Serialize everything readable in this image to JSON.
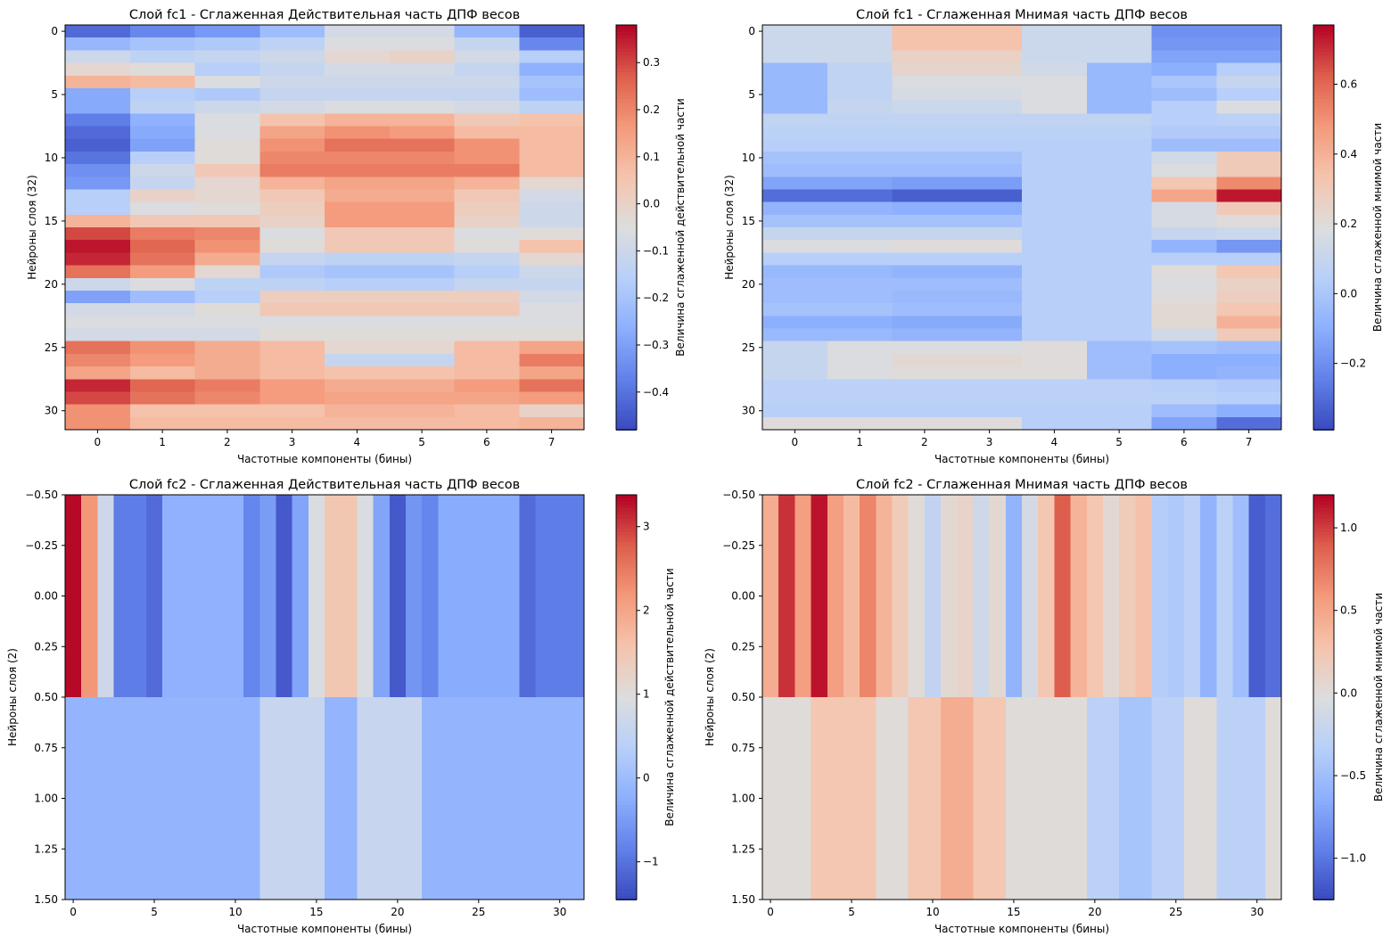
{
  "chart_data": [
    {
      "type": "heatmap",
      "title": "Слой fc1 - Сглаженная Действительная часть ДПФ весов",
      "xlabel": "Частотные компоненты (бины)",
      "ylabel": "Нейроны слоя (32)",
      "colorbar_label": "Величина сглаженной действительной части",
      "colormap": "coolwarm",
      "xlim": [
        -0.5,
        7.5
      ],
      "ylim": [
        31.5,
        -0.5
      ],
      "vmin": -0.48,
      "vmax": 0.38,
      "xticks": [
        0,
        1,
        2,
        3,
        4,
        5,
        6,
        7
      ],
      "xtick_labels": [
        "0",
        "1",
        "2",
        "3",
        "4",
        "5",
        "6",
        "7"
      ],
      "yticks": [
        0,
        5,
        10,
        15,
        20,
        25,
        30
      ],
      "ytick_labels": [
        "0",
        "5",
        "10",
        "15",
        "20",
        "25",
        "30"
      ],
      "cbar_ticks": [
        0.3,
        0.2,
        0.1,
        0.0,
        -0.1,
        -0.2,
        -0.3,
        -0.4
      ],
      "cbar_tick_labels": [
        "0.3",
        "0.2",
        "0.1",
        "0.0",
        "−0.1",
        "−0.2",
        "−0.3",
        "−0.4"
      ],
      "rows": 32,
      "cols": 8,
      "values": [
        [
          -0.42,
          -0.36,
          -0.32,
          -0.22,
          -0.08,
          -0.08,
          -0.24,
          -0.44
        ],
        [
          -0.24,
          -0.2,
          -0.18,
          -0.14,
          -0.06,
          -0.06,
          -0.12,
          -0.36
        ],
        [
          -0.1,
          -0.14,
          -0.12,
          -0.1,
          -0.02,
          0.0,
          -0.08,
          -0.16
        ],
        [
          -0.02,
          -0.04,
          -0.16,
          -0.12,
          -0.08,
          -0.08,
          -0.12,
          -0.26
        ],
        [
          0.1,
          0.08,
          -0.06,
          -0.1,
          -0.1,
          -0.1,
          -0.1,
          -0.2
        ],
        [
          -0.28,
          -0.16,
          -0.18,
          -0.12,
          -0.12,
          -0.12,
          -0.12,
          -0.22
        ],
        [
          -0.28,
          -0.14,
          -0.1,
          -0.08,
          -0.06,
          -0.06,
          -0.08,
          -0.14
        ],
        [
          -0.38,
          -0.26,
          -0.06,
          0.06,
          0.1,
          0.1,
          0.04,
          0.06
        ],
        [
          -0.42,
          -0.28,
          -0.06,
          0.14,
          0.18,
          0.16,
          0.08,
          0.08
        ],
        [
          -0.44,
          -0.3,
          -0.04,
          0.18,
          0.24,
          0.24,
          0.18,
          0.08
        ],
        [
          -0.4,
          -0.16,
          -0.04,
          0.2,
          0.2,
          0.2,
          0.18,
          0.08
        ],
        [
          -0.34,
          -0.1,
          0.04,
          0.22,
          0.22,
          0.22,
          0.22,
          0.08
        ],
        [
          -0.32,
          -0.12,
          -0.02,
          0.1,
          0.14,
          0.14,
          0.1,
          -0.02
        ],
        [
          -0.16,
          0.0,
          -0.02,
          0.04,
          0.12,
          0.12,
          0.04,
          -0.08
        ],
        [
          -0.16,
          -0.06,
          -0.04,
          0.02,
          0.16,
          0.16,
          0.02,
          -0.1
        ],
        [
          0.1,
          0.04,
          0.04,
          0.0,
          0.16,
          0.16,
          0.0,
          -0.1
        ],
        [
          0.3,
          0.22,
          0.2,
          -0.06,
          0.04,
          0.04,
          -0.06,
          -0.04
        ],
        [
          0.36,
          0.26,
          0.18,
          -0.04,
          0.04,
          0.04,
          -0.04,
          0.06
        ],
        [
          0.34,
          0.24,
          0.12,
          -0.12,
          -0.14,
          -0.14,
          -0.12,
          -0.02
        ],
        [
          0.24,
          0.16,
          -0.02,
          -0.18,
          -0.2,
          -0.2,
          -0.16,
          -0.1
        ],
        [
          -0.1,
          -0.06,
          -0.14,
          -0.14,
          -0.16,
          -0.16,
          -0.12,
          -0.12
        ],
        [
          -0.3,
          -0.22,
          -0.16,
          0.02,
          0.02,
          0.02,
          0.02,
          -0.08
        ],
        [
          -0.08,
          -0.08,
          -0.04,
          0.04,
          0.04,
          0.04,
          0.04,
          -0.06
        ],
        [
          -0.06,
          -0.06,
          -0.06,
          -0.06,
          -0.06,
          -0.06,
          -0.06,
          -0.06
        ],
        [
          -0.08,
          -0.08,
          -0.08,
          -0.04,
          -0.04,
          -0.04,
          -0.04,
          -0.04
        ],
        [
          0.24,
          0.18,
          0.12,
          0.08,
          -0.02,
          -0.02,
          0.08,
          0.14
        ],
        [
          0.2,
          0.16,
          0.12,
          0.08,
          -0.12,
          -0.12,
          0.08,
          0.22
        ],
        [
          0.14,
          0.08,
          0.12,
          0.08,
          0.06,
          0.06,
          0.08,
          0.14
        ],
        [
          0.34,
          0.26,
          0.22,
          0.16,
          0.12,
          0.12,
          0.16,
          0.24
        ],
        [
          0.3,
          0.24,
          0.2,
          0.16,
          0.14,
          0.14,
          0.14,
          0.16
        ],
        [
          0.18,
          0.06,
          0.06,
          0.06,
          0.1,
          0.1,
          0.08,
          0.0
        ],
        [
          0.18,
          0.08,
          0.08,
          0.08,
          0.08,
          0.08,
          0.08,
          0.1
        ]
      ]
    },
    {
      "type": "heatmap",
      "title": "Слой fc1 - Сглаженная Мнимая часть ДПФ весов",
      "xlabel": "Частотные компоненты (бины)",
      "ylabel": "Нейроны слоя (32)",
      "colorbar_label": "Величина сглаженной мнимой части",
      "colormap": "coolwarm",
      "xlim": [
        -0.5,
        7.5
      ],
      "ylim": [
        31.5,
        -0.5
      ],
      "vmin": -0.39,
      "vmax": 0.77,
      "xticks": [
        0,
        1,
        2,
        3,
        4,
        5,
        6,
        7
      ],
      "xtick_labels": [
        "0",
        "1",
        "2",
        "3",
        "4",
        "5",
        "6",
        "7"
      ],
      "yticks": [
        0,
        5,
        10,
        15,
        20,
        25,
        30
      ],
      "ytick_labels": [
        "0",
        "5",
        "10",
        "15",
        "20",
        "25",
        "30"
      ],
      "cbar_ticks": [
        0.6,
        0.4,
        0.2,
        0.0,
        -0.2
      ],
      "cbar_tick_labels": [
        "0.6",
        "0.4",
        "0.2",
        "0.0",
        "−0.2"
      ],
      "rows": 32,
      "cols": 8,
      "values": [
        [
          0.12,
          0.12,
          0.34,
          0.34,
          0.12,
          0.12,
          -0.2,
          -0.2
        ],
        [
          0.12,
          0.12,
          0.34,
          0.34,
          0.12,
          0.12,
          -0.18,
          -0.18
        ],
        [
          0.12,
          0.12,
          0.26,
          0.26,
          0.12,
          0.12,
          -0.14,
          -0.14
        ],
        [
          -0.06,
          0.08,
          0.24,
          0.24,
          0.14,
          -0.06,
          -0.1,
          0.04
        ],
        [
          -0.06,
          0.08,
          0.18,
          0.18,
          0.18,
          -0.06,
          0.0,
          0.1
        ],
        [
          -0.06,
          0.08,
          0.16,
          0.16,
          0.18,
          -0.06,
          -0.04,
          0.04
        ],
        [
          -0.06,
          0.1,
          0.12,
          0.12,
          0.18,
          -0.06,
          0.04,
          0.18
        ],
        [
          0.08,
          0.08,
          0.08,
          0.08,
          0.08,
          0.08,
          0.04,
          0.06
        ],
        [
          0.06,
          0.06,
          0.06,
          0.06,
          0.06,
          0.06,
          0.02,
          0.02
        ],
        [
          0.04,
          0.04,
          0.04,
          0.04,
          0.04,
          0.04,
          -0.04,
          -0.04
        ],
        [
          -0.02,
          -0.02,
          -0.02,
          -0.02,
          0.04,
          0.04,
          0.14,
          0.3
        ],
        [
          -0.04,
          -0.04,
          -0.04,
          -0.04,
          0.04,
          0.04,
          0.18,
          0.3
        ],
        [
          -0.14,
          -0.14,
          -0.16,
          -0.16,
          0.04,
          0.04,
          0.32,
          0.52
        ],
        [
          -0.3,
          -0.3,
          -0.34,
          -0.34,
          0.04,
          0.04,
          0.44,
          0.74
        ],
        [
          -0.08,
          -0.08,
          -0.1,
          -0.1,
          0.04,
          0.04,
          0.16,
          0.3
        ],
        [
          -0.02,
          -0.02,
          -0.02,
          -0.02,
          0.04,
          0.04,
          0.16,
          0.2
        ],
        [
          0.1,
          0.1,
          0.1,
          0.1,
          0.04,
          0.04,
          0.1,
          0.12
        ],
        [
          0.18,
          0.18,
          0.2,
          0.2,
          0.04,
          0.04,
          -0.08,
          -0.18
        ],
        [
          0.04,
          0.04,
          0.04,
          0.04,
          0.04,
          0.04,
          0.04,
          0.04
        ],
        [
          -0.06,
          -0.06,
          -0.08,
          -0.08,
          0.04,
          0.04,
          0.2,
          0.32
        ],
        [
          -0.04,
          -0.04,
          -0.04,
          -0.04,
          0.04,
          0.04,
          0.18,
          0.26
        ],
        [
          -0.04,
          -0.04,
          -0.06,
          -0.06,
          0.04,
          0.04,
          0.2,
          0.28
        ],
        [
          -0.02,
          -0.02,
          -0.04,
          -0.04,
          0.04,
          0.04,
          0.22,
          0.32
        ],
        [
          -0.1,
          -0.1,
          -0.12,
          -0.12,
          0.04,
          0.04,
          0.22,
          0.4
        ],
        [
          -0.06,
          -0.06,
          -0.08,
          -0.08,
          0.04,
          0.04,
          0.14,
          0.3
        ],
        [
          0.1,
          0.18,
          0.18,
          0.18,
          0.2,
          -0.04,
          -0.02,
          -0.04
        ],
        [
          0.1,
          0.18,
          0.22,
          0.22,
          0.2,
          -0.04,
          -0.1,
          -0.1
        ],
        [
          0.1,
          0.18,
          0.2,
          0.2,
          0.2,
          -0.04,
          -0.1,
          -0.08
        ],
        [
          0.06,
          0.06,
          0.06,
          0.06,
          0.06,
          0.06,
          0.04,
          0.02
        ],
        [
          0.06,
          0.06,
          0.06,
          0.06,
          0.06,
          0.06,
          0.06,
          0.04
        ],
        [
          0.04,
          0.04,
          0.04,
          0.04,
          0.04,
          0.04,
          -0.04,
          -0.1
        ],
        [
          0.2,
          0.2,
          0.2,
          0.2,
          0.04,
          0.04,
          -0.14,
          -0.3
        ]
      ]
    },
    {
      "type": "heatmap",
      "title": "Слой fc2 - Сглаженная Действительная часть ДПФ весов",
      "xlabel": "Частотные компоненты (бины)",
      "ylabel": "Нейроны слоя (2)",
      "colorbar_label": "Величина сглаженной действительной части",
      "colormap": "coolwarm",
      "xlim": [
        -0.5,
        31.5
      ],
      "ylim": [
        1.5,
        -0.5
      ],
      "vmin": -1.45,
      "vmax": 3.38,
      "xticks": [
        0,
        5,
        10,
        15,
        20,
        25,
        30
      ],
      "xtick_labels": [
        "0",
        "5",
        "10",
        "15",
        "20",
        "25",
        "30"
      ],
      "yticks": [
        -0.5,
        -0.25,
        0.0,
        0.25,
        0.5,
        0.75,
        1.0,
        1.25,
        1.5
      ],
      "ytick_labels": [
        "−0.50",
        "−0.25",
        "0.00",
        "0.25",
        "0.50",
        "0.75",
        "1.00",
        "1.25",
        "1.50"
      ],
      "cbar_ticks": [
        3,
        2,
        1,
        0,
        -1
      ],
      "cbar_tick_labels": [
        "3",
        "2",
        "1",
        "0",
        "−1"
      ],
      "rows": 2,
      "cols": 32,
      "values": [
        [
          3.35,
          2.2,
          0.7,
          -0.9,
          -0.9,
          -1.1,
          -0.2,
          -0.2,
          -0.2,
          -0.2,
          -0.2,
          -0.8,
          -0.5,
          -1.3,
          -0.4,
          0.9,
          1.5,
          1.5,
          0.9,
          -0.4,
          -1.3,
          -0.6,
          -0.8,
          -0.3,
          -0.3,
          -0.3,
          -0.3,
          -0.3,
          -1.1,
          -0.9,
          -0.9,
          -0.9
        ],
        [
          -0.15,
          -0.15,
          -0.15,
          -0.15,
          -0.15,
          -0.15,
          -0.15,
          -0.15,
          -0.15,
          -0.15,
          -0.15,
          -0.15,
          0.6,
          0.6,
          0.6,
          0.6,
          -0.15,
          -0.15,
          0.6,
          0.6,
          0.6,
          0.6,
          -0.15,
          -0.15,
          -0.15,
          -0.15,
          -0.15,
          -0.15,
          -0.15,
          -0.15,
          -0.15,
          -0.15
        ]
      ]
    },
    {
      "type": "heatmap",
      "title": "Слой fc2 - Сглаженная Мнимая часть ДПФ весов",
      "xlabel": "Частотные компоненты (бины)",
      "ylabel": "Нейроны слоя (2)",
      "colorbar_label": "Величина сглаженной мнимой части",
      "colormap": "coolwarm",
      "xlim": [
        -0.5,
        31.5
      ],
      "ylim": [
        1.5,
        -0.5
      ],
      "vmin": -1.25,
      "vmax": 1.2,
      "xticks": [
        0,
        5,
        10,
        15,
        20,
        25,
        30
      ],
      "xtick_labels": [
        "0",
        "5",
        "10",
        "15",
        "20",
        "25",
        "30"
      ],
      "yticks": [
        -0.5,
        -0.25,
        0.0,
        0.25,
        0.5,
        0.75,
        1.0,
        1.25,
        1.5
      ],
      "ytick_labels": [
        "−0.50",
        "−0.25",
        "0.00",
        "0.25",
        "0.50",
        "0.75",
        "1.00",
        "1.25",
        "1.50"
      ],
      "cbar_ticks": [
        1.0,
        0.5,
        0.0,
        -0.5,
        -1.0
      ],
      "cbar_tick_labels": [
        "1.0",
        "0.5",
        "0.0",
        "−0.5",
        "−1.0"
      ],
      "rows": 2,
      "cols": 32,
      "values": [
        [
          0.45,
          1.05,
          0.55,
          1.15,
          0.55,
          0.35,
          0.7,
          0.4,
          0.2,
          0.0,
          -0.25,
          0.05,
          0.1,
          -0.15,
          0.05,
          -0.6,
          -0.1,
          0.25,
          0.9,
          0.4,
          0.25,
          0.05,
          0.2,
          0.3,
          -0.35,
          -0.4,
          -0.3,
          -0.6,
          -0.3,
          -0.5,
          -1.15,
          -1.05
        ],
        [
          0.0,
          0.0,
          0.0,
          0.25,
          0.25,
          0.25,
          0.25,
          0.0,
          0.0,
          0.25,
          0.25,
          0.45,
          0.45,
          0.25,
          0.25,
          0.0,
          0.0,
          0.0,
          0.0,
          0.0,
          -0.3,
          -0.3,
          -0.45,
          -0.45,
          -0.3,
          -0.3,
          0.0,
          0.0,
          -0.3,
          -0.3,
          -0.3,
          0.0
        ]
      ]
    }
  ]
}
